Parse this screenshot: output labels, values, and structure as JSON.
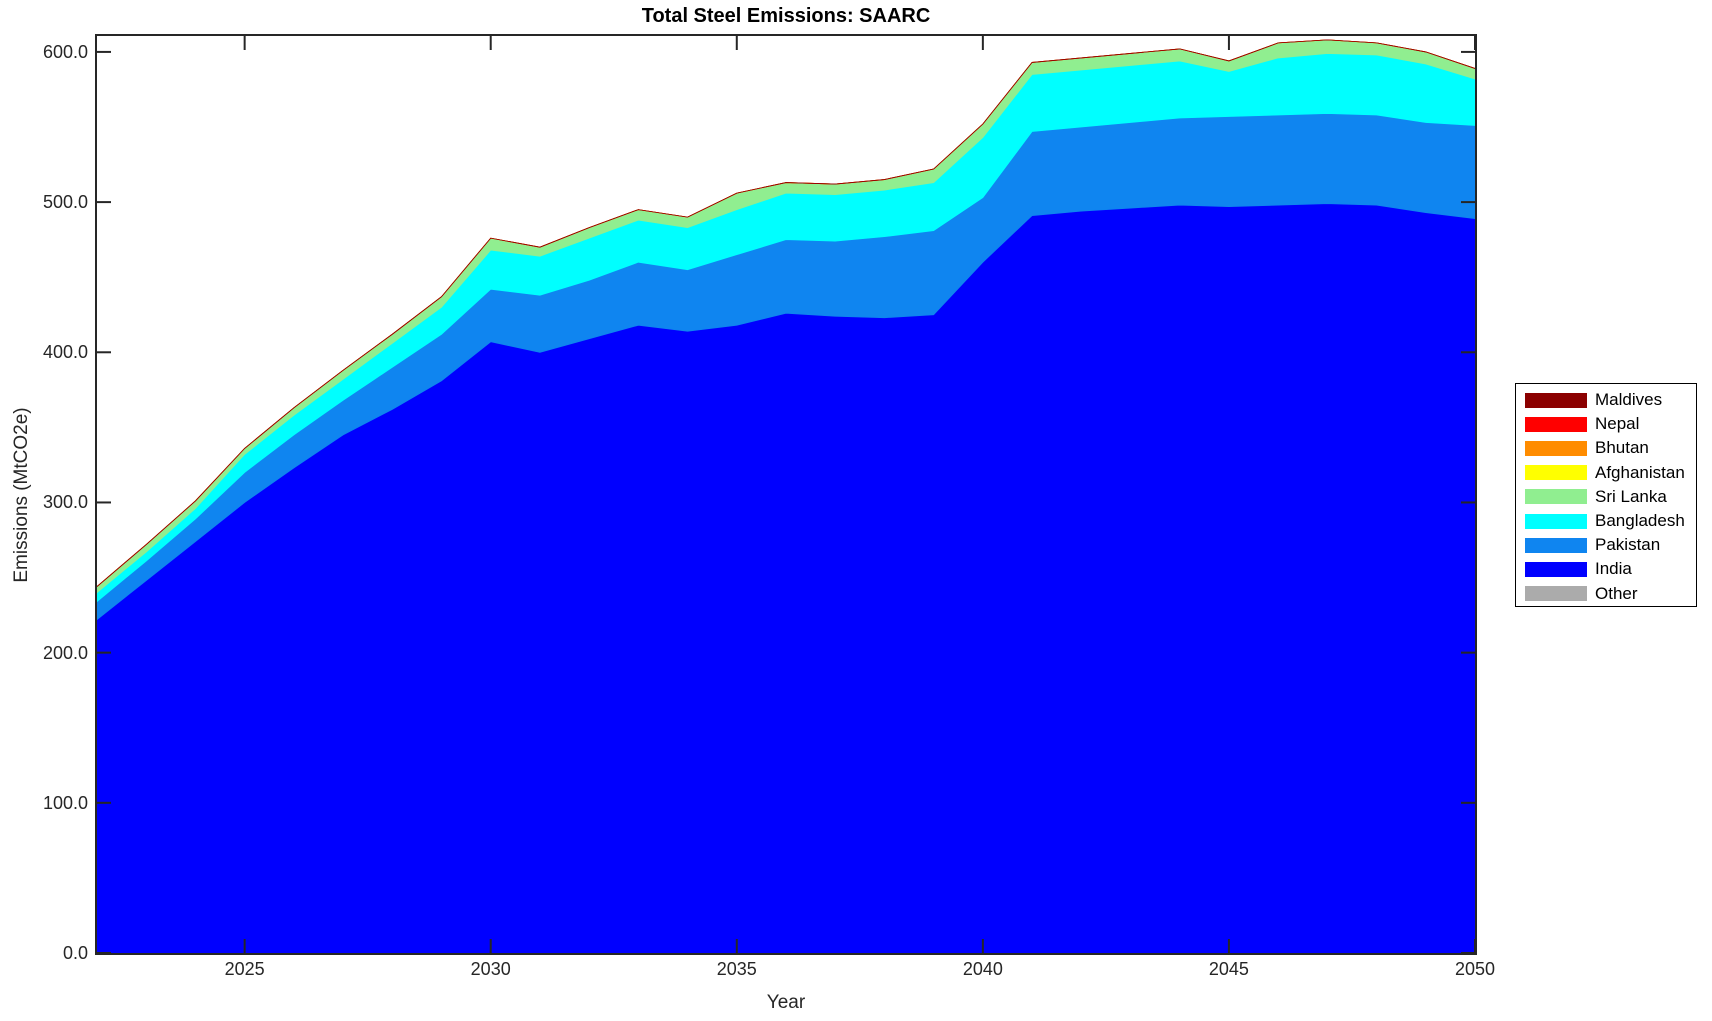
{
  "figure": {
    "background": "#FFFFFF",
    "axis_color": "#262626",
    "title_color": "#000000"
  },
  "chart_data": {
    "type": "area",
    "stacked": true,
    "title": "Total Steel Emissions: SAARC",
    "xlabel": "Year",
    "ylabel": "Emissions (MtCO2e)",
    "grid": false,
    "legend_position": "right-outside",
    "x": [
      2022,
      2023,
      2024,
      2025,
      2026,
      2027,
      2028,
      2029,
      2030,
      2031,
      2032,
      2033,
      2034,
      2035,
      2036,
      2037,
      2038,
      2039,
      2040,
      2041,
      2042,
      2043,
      2044,
      2045,
      2046,
      2047,
      2048,
      2049,
      2050
    ],
    "xlim": [
      2022,
      2050
    ],
    "ylim": [
      0,
      610.6
    ],
    "x_tick_labels": [
      "2025",
      "2030",
      "2035",
      "2040",
      "2045",
      "2050"
    ],
    "x_tick_values": [
      2025,
      2030,
      2035,
      2040,
      2045,
      2050
    ],
    "y_tick_labels": [
      "0.0",
      "100.0",
      "200.0",
      "300.0",
      "400.0",
      "500.0",
      "600.0"
    ],
    "y_tick_values": [
      0,
      100,
      200,
      300,
      400,
      500,
      600
    ],
    "series": [
      {
        "name": "Other",
        "color": "#ABABAB",
        "values": [
          0,
          0,
          0,
          0,
          0,
          0,
          0,
          0,
          0,
          0,
          0,
          0,
          0,
          0,
          0,
          0,
          0,
          0,
          0,
          0,
          0,
          0,
          0,
          0,
          0,
          0,
          0,
          0,
          0
        ]
      },
      {
        "name": "India",
        "color": "#0000FF",
        "values": [
          222,
          248,
          274,
          300,
          323,
          345,
          362,
          381,
          407,
          400,
          409,
          418,
          414,
          418,
          426,
          424,
          423,
          425,
          460,
          491,
          494,
          496,
          498,
          497,
          498,
          499,
          498,
          493,
          489
        ]
      },
      {
        "name": "Pakistan",
        "color": "#0F85F0",
        "values": [
          12,
          13,
          15,
          20,
          22,
          23,
          28,
          31,
          35,
          38,
          39,
          42,
          41,
          47,
          49,
          50,
          54,
          56,
          43,
          56,
          56,
          57,
          58,
          60,
          60,
          60,
          60,
          60,
          62
        ]
      },
      {
        "name": "Bangladesh",
        "color": "#00FFFF",
        "values": [
          6,
          6,
          7,
          12,
          13,
          14,
          16,
          18,
          26,
          26,
          28,
          28,
          28,
          30,
          31,
          31,
          31,
          32,
          40,
          38,
          38,
          38,
          38,
          30,
          38,
          40,
          40,
          39,
          31
        ]
      },
      {
        "name": "Sri Lanka",
        "color": "#90EE90",
        "values": [
          4,
          5,
          5,
          4,
          5,
          6,
          6,
          7,
          8,
          6,
          7,
          7,
          7,
          11,
          7,
          7,
          7,
          9,
          9,
          8,
          8,
          8,
          8,
          7,
          10,
          9,
          8,
          8,
          7
        ]
      },
      {
        "name": "Afghanistan",
        "color": "#FFFF00",
        "values": [
          0,
          0,
          0,
          0,
          0,
          0,
          0,
          0,
          0,
          0,
          0,
          0,
          0,
          0,
          0,
          0,
          0,
          0,
          0,
          0,
          0,
          0,
          0,
          0,
          0,
          0,
          0,
          0,
          0
        ]
      },
      {
        "name": "Bhutan",
        "color": "#FF8C00",
        "values": [
          0,
          0,
          0,
          0,
          0,
          0,
          0,
          0,
          0,
          0,
          0,
          0,
          0,
          0,
          0,
          0,
          0,
          0,
          0,
          0,
          0,
          0,
          0,
          0,
          0,
          0,
          0,
          0,
          0
        ]
      },
      {
        "name": "Nepal",
        "color": "#FF0000",
        "values": [
          0,
          0,
          0,
          0,
          0,
          0,
          0,
          0,
          0,
          0,
          0,
          0,
          0,
          0,
          0,
          0,
          0,
          0,
          0,
          0,
          0,
          0,
          0,
          0,
          0,
          0,
          0,
          0,
          0
        ]
      },
      {
        "name": "Maldives",
        "color": "#8B0000",
        "values": [
          0,
          0,
          0,
          0,
          0,
          0,
          0,
          0,
          0,
          0,
          0,
          0,
          0,
          0,
          0,
          0,
          0,
          0,
          0,
          0,
          0,
          0,
          0,
          0,
          0,
          0,
          0,
          0,
          0
        ]
      }
    ],
    "legend": {
      "items_top_to_bottom": [
        "Maldives",
        "Nepal",
        "Bhutan",
        "Afghanistan",
        "Sri Lanka",
        "Bangladesh",
        "Pakistan",
        "India",
        "Other"
      ]
    }
  }
}
